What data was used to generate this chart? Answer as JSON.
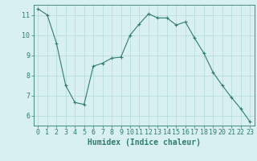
{
  "xlabel": "Humidex (Indice chaleur)",
  "ylabel": "",
  "x": [
    0,
    1,
    2,
    3,
    4,
    5,
    6,
    7,
    8,
    9,
    10,
    11,
    12,
    13,
    14,
    15,
    16,
    17,
    18,
    19,
    20,
    21,
    22,
    23
  ],
  "y": [
    11.3,
    11.0,
    9.6,
    7.5,
    6.65,
    6.55,
    8.45,
    8.6,
    8.85,
    8.9,
    10.0,
    10.55,
    11.05,
    10.85,
    10.85,
    10.5,
    10.65,
    9.85,
    9.1,
    8.15,
    7.5,
    6.9,
    6.35,
    5.7
  ],
  "line_color": "#2e7d6e",
  "marker": "+",
  "marker_size": 3,
  "background_color": "#d8f0f0",
  "grid_color": "#b0d8d8",
  "ylim": [
    5.5,
    11.5
  ],
  "xlim": [
    -0.5,
    23.5
  ],
  "yticks": [
    6,
    7,
    8,
    9,
    10,
    11
  ],
  "xticks": [
    0,
    1,
    2,
    3,
    4,
    5,
    6,
    7,
    8,
    9,
    10,
    11,
    12,
    13,
    14,
    15,
    16,
    17,
    18,
    19,
    20,
    21,
    22,
    23
  ],
  "tick_color": "#2e7d6e",
  "spine_color": "#2e7d6e",
  "tick_fontsize": 6,
  "xlabel_fontsize": 7
}
